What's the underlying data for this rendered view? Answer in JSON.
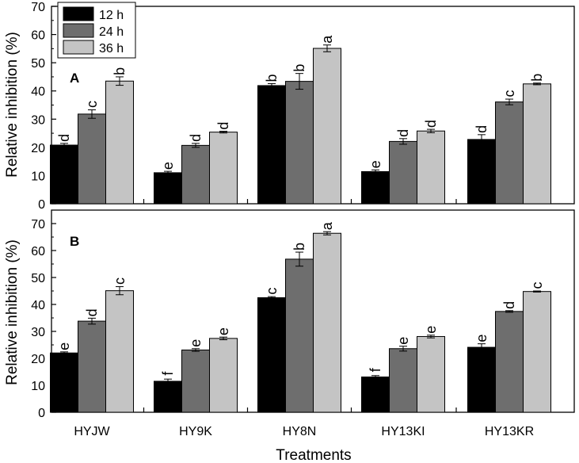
{
  "chart_data": {
    "type": "bar",
    "categories": [
      "HYJW",
      "HY9K",
      "HY8N",
      "HY13KI",
      "HY13KR"
    ],
    "xlabel": "Treatments",
    "legend": {
      "placement": "top-left",
      "entries": [
        {
          "name": "12 h",
          "color": "#000000"
        },
        {
          "name": "24 h",
          "color": "#6e6e6e"
        },
        {
          "name": "36 h",
          "color": "#c4c4c4"
        }
      ]
    },
    "panels": [
      {
        "label": "A",
        "ylabel": "Relative inhibition (%)",
        "ylim": [
          0,
          70
        ],
        "yticks": [
          0,
          10,
          20,
          30,
          40,
          50,
          60,
          70
        ],
        "series": [
          {
            "name": "12 h",
            "values": [
              20.8,
              11.0,
              41.9,
              11.4,
              22.8
            ],
            "errors": [
              0.6,
              0.5,
              0.7,
              0.6,
              1.7
            ],
            "letters": [
              "d",
              "e",
              "b",
              "e",
              "d"
            ]
          },
          {
            "name": "24 h",
            "values": [
              31.8,
              20.7,
              43.4,
              22.1,
              36.1
            ],
            "errors": [
              1.5,
              0.7,
              2.8,
              1.0,
              1.0
            ],
            "letters": [
              "c",
              "d",
              "b",
              "d",
              "c"
            ]
          },
          {
            "name": "36 h",
            "values": [
              43.5,
              25.4,
              55.1,
              25.8,
              42.5
            ],
            "errors": [
              1.5,
              0.3,
              1.2,
              0.6,
              0.3
            ],
            "letters": [
              "b",
              "d",
              "a",
              "d",
              "b"
            ]
          }
        ]
      },
      {
        "label": "B",
        "ylabel": "Relative inhibition (%)",
        "ylim": [
          0,
          75
        ],
        "yticks": [
          0,
          10,
          20,
          30,
          40,
          50,
          60,
          70
        ],
        "series": [
          {
            "name": "12 h",
            "values": [
              22.0,
              11.5,
              42.5,
              13.1,
              24.1
            ],
            "errors": [
              0.4,
              0.8,
              0.4,
              0.5,
              1.3
            ],
            "letters": [
              "e",
              "f",
              "c",
              "f",
              "e"
            ]
          },
          {
            "name": "24 h",
            "values": [
              33.8,
              23.1,
              56.8,
              23.6,
              37.4
            ],
            "errors": [
              1.1,
              0.5,
              2.6,
              0.9,
              0.3
            ],
            "letters": [
              "d",
              "e",
              "b",
              "e",
              "d"
            ]
          },
          {
            "name": "36 h",
            "values": [
              45.1,
              27.4,
              66.4,
              28.1,
              44.8
            ],
            "errors": [
              1.5,
              0.5,
              0.6,
              0.5,
              0.2
            ],
            "letters": [
              "c",
              "e",
              "a",
              "e",
              "c"
            ]
          }
        ]
      }
    ]
  }
}
